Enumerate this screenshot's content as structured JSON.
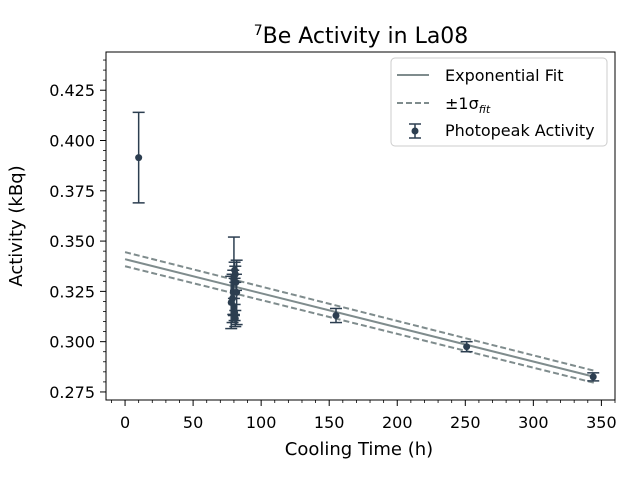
{
  "chart_data": {
    "type": "scatter",
    "title_sup": "7",
    "title_main": "Be Activity in La08",
    "xlabel": "Cooling Time (h)",
    "ylabel": "Activity (kBq)",
    "xlim": [
      -14,
      360
    ],
    "ylim": [
      0.271,
      0.444
    ],
    "xticks": [
      0,
      50,
      100,
      150,
      200,
      250,
      300,
      350
    ],
    "xtick_labels": [
      "0",
      "50",
      "100",
      "150",
      "200",
      "250",
      "300",
      "350"
    ],
    "yticks": [
      0.275,
      0.3,
      0.325,
      0.35,
      0.375,
      0.4,
      0.425
    ],
    "ytick_labels": [
      "0.275",
      "0.300",
      "0.325",
      "0.350",
      "0.375",
      "0.400",
      "0.425"
    ],
    "grid": false,
    "legend_position": "top-right",
    "legend": {
      "fit": "Exponential Fit",
      "band_prefix": "±1σ",
      "band_sub": "fit",
      "data": "Photopeak Activity"
    },
    "colors": {
      "data": "#2c3e50",
      "fit": "#7f8c8d",
      "axis": "#000000"
    },
    "fit": {
      "x": [
        0,
        345
      ],
      "y": [
        0.341,
        0.2825
      ]
    },
    "fit_upper": {
      "x": [
        0,
        345
      ],
      "y": [
        0.3445,
        0.2855
      ]
    },
    "fit_lower": {
      "x": [
        0,
        345
      ],
      "y": [
        0.3375,
        0.2795
      ]
    },
    "photopeak": [
      {
        "x": 10,
        "y": 0.3915,
        "yerr": 0.0225
      },
      {
        "x": 78,
        "y": 0.3195,
        "yerr": 0.013
      },
      {
        "x": 79,
        "y": 0.3215,
        "yerr": 0.012
      },
      {
        "x": 79.5,
        "y": 0.3245,
        "yerr": 0.011
      },
      {
        "x": 80,
        "y": 0.3325,
        "yerr": 0.0195
      },
      {
        "x": 80.5,
        "y": 0.3355,
        "yerr": 0.004
      },
      {
        "x": 81,
        "y": 0.3335,
        "yerr": 0.004
      },
      {
        "x": 81.5,
        "y": 0.3295,
        "yerr": 0.004
      },
      {
        "x": 82,
        "y": 0.3245,
        "yerr": 0.016
      },
      {
        "x": 80,
        "y": 0.3175,
        "yerr": 0.004
      },
      {
        "x": 80.5,
        "y": 0.3145,
        "yerr": 0.004
      },
      {
        "x": 81,
        "y": 0.3115,
        "yerr": 0.004
      },
      {
        "x": 155,
        "y": 0.313,
        "yerr": 0.0035
      },
      {
        "x": 251,
        "y": 0.2975,
        "yerr": 0.0025
      },
      {
        "x": 344,
        "y": 0.2825,
        "yerr": 0.002
      }
    ]
  }
}
